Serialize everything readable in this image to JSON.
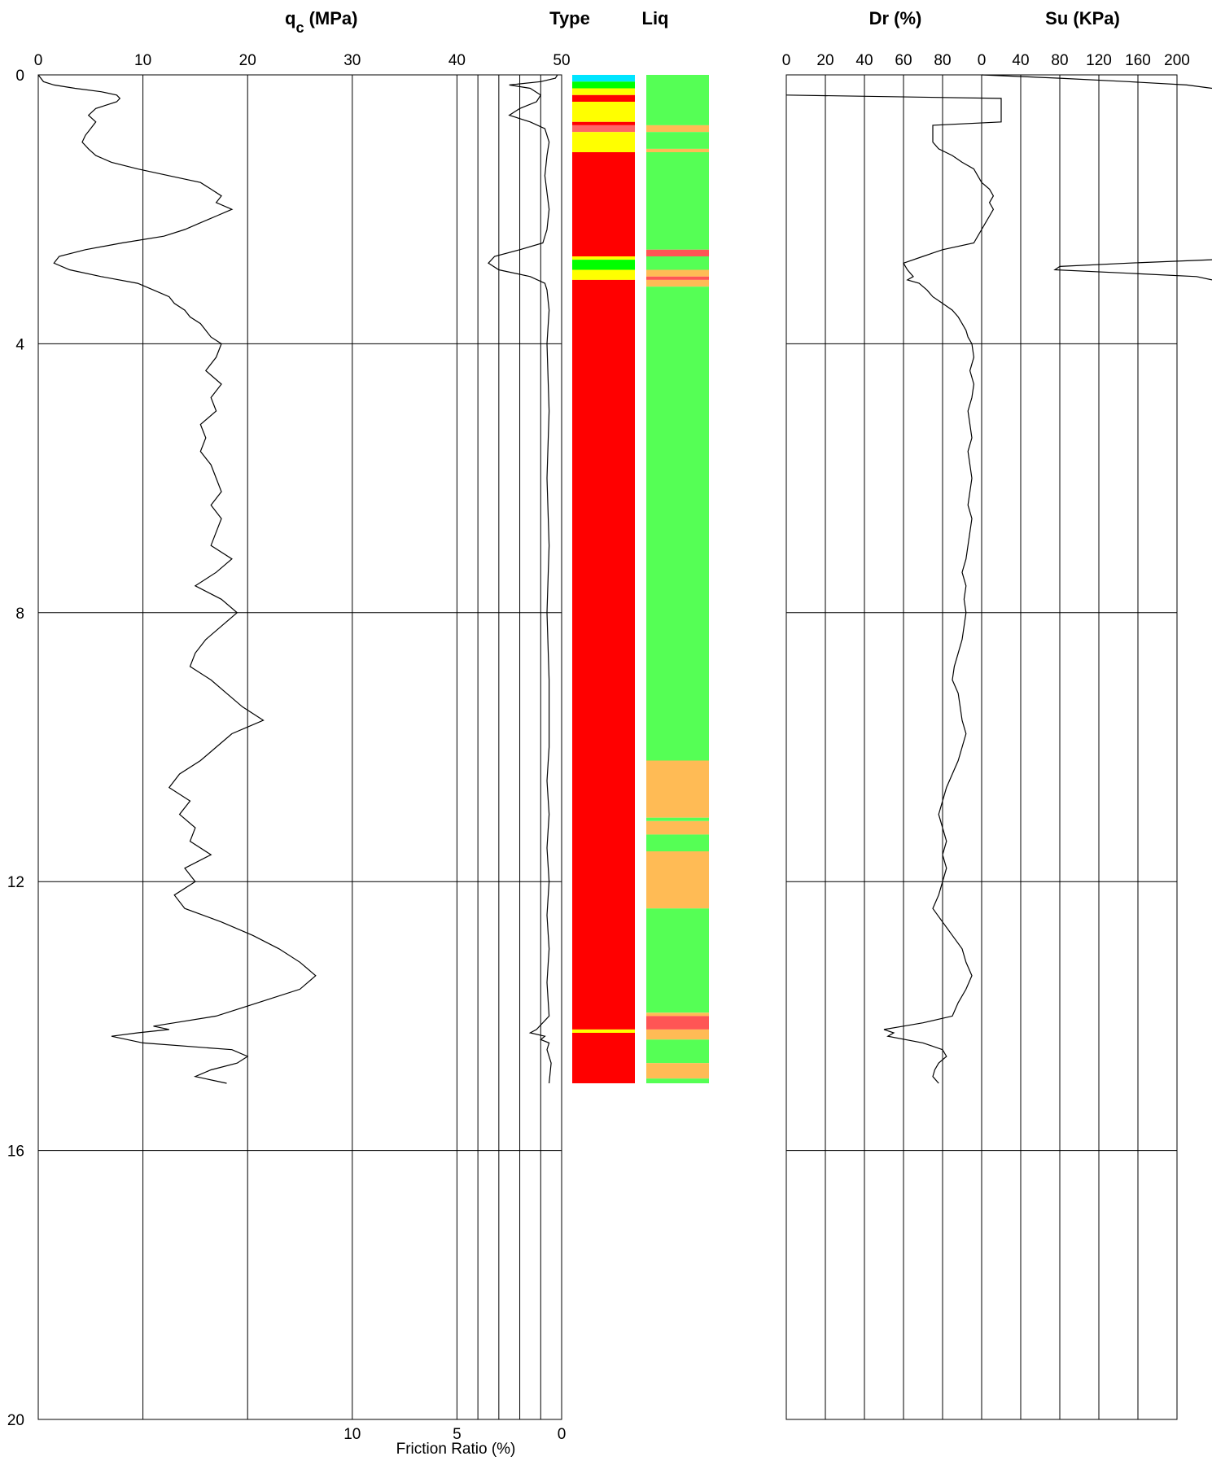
{
  "chart_data": [
    {
      "type": "line",
      "title": "qc (MPa)",
      "title_main": "q",
      "title_sub": "c",
      "title_rest": " (MPa)",
      "x_ticks": [
        "0",
        "10",
        "20",
        "30",
        "40",
        "50"
      ],
      "xlim": [
        0,
        50
      ],
      "y_ticks": [
        "0",
        "4",
        "8",
        "12",
        "16",
        "20"
      ],
      "ylim": [
        0,
        20
      ],
      "grid": true,
      "series": [
        {
          "values_depth": [
            0.0,
            0.1,
            0.15,
            0.2,
            0.25,
            0.3,
            0.35,
            0.4,
            0.5,
            0.6,
            0.7,
            0.8,
            0.9,
            1.0,
            1.1,
            1.2,
            1.3,
            1.4,
            1.5,
            1.6,
            1.7,
            1.8,
            1.9,
            2.0,
            2.1,
            2.2,
            2.3,
            2.4,
            2.5,
            2.6,
            2.7,
            2.8,
            2.9,
            3.0,
            3.1,
            3.2,
            3.3,
            3.4,
            3.5,
            3.6,
            3.7,
            3.8,
            3.9,
            4.0,
            4.2,
            4.4,
            4.6,
            4.8,
            5.0,
            5.2,
            5.4,
            5.6,
            5.8,
            6.0,
            6.2,
            6.4,
            6.6,
            6.8,
            7.0,
            7.2,
            7.4,
            7.6,
            7.8,
            8.0,
            8.2,
            8.4,
            8.6,
            8.8,
            9.0,
            9.2,
            9.4,
            9.6,
            9.8,
            10.0,
            10.2,
            10.4,
            10.6,
            10.8,
            11.0,
            11.2,
            11.4,
            11.6,
            11.8,
            12.0,
            12.2,
            12.4,
            12.6,
            12.8,
            13.0,
            13.2,
            13.4,
            13.6,
            13.8,
            14.0,
            14.1,
            14.15,
            14.2,
            14.25,
            14.3,
            14.4,
            14.5,
            14.6,
            14.7,
            14.8,
            14.9,
            15.0
          ],
          "values_qc": [
            0.0,
            0.5,
            1.5,
            3.5,
            6.0,
            7.5,
            7.8,
            7.5,
            5.5,
            4.8,
            5.5,
            5.0,
            4.5,
            4.2,
            4.8,
            5.5,
            7.0,
            9.5,
            12.5,
            15.5,
            16.5,
            17.5,
            17.0,
            18.5,
            17.0,
            15.5,
            14.0,
            12.0,
            8.0,
            4.5,
            2.0,
            1.5,
            3.0,
            6.0,
            9.5,
            11.0,
            12.5,
            13.0,
            14.0,
            14.5,
            15.5,
            16.0,
            16.5,
            17.5,
            17.0,
            16.0,
            17.5,
            16.5,
            17.0,
            15.5,
            16.0,
            15.5,
            16.5,
            17.0,
            17.5,
            16.5,
            17.5,
            17.0,
            16.5,
            18.5,
            17.0,
            15.0,
            17.5,
            19.0,
            17.5,
            16.0,
            15.0,
            14.5,
            16.5,
            18.0,
            19.5,
            21.5,
            18.5,
            17.0,
            15.5,
            13.5,
            12.5,
            14.5,
            13.5,
            15.0,
            14.5,
            16.5,
            14.0,
            15.0,
            13.0,
            14.0,
            17.5,
            20.5,
            23.0,
            25.0,
            26.5,
            25.0,
            21.0,
            17.0,
            13.0,
            11.0,
            12.5,
            9.5,
            7.0,
            10.0,
            18.5,
            20.0,
            19.0,
            16.5,
            15.0,
            18.0
          ]
        },
        {
          "name": "Friction Ratio (%)",
          "values_depth": [
            0.0,
            0.05,
            0.1,
            0.15,
            0.2,
            0.3,
            0.4,
            0.5,
            0.6,
            0.7,
            0.8,
            1.0,
            1.2,
            1.5,
            2.0,
            2.3,
            2.5,
            2.6,
            2.7,
            2.8,
            2.9,
            3.0,
            3.1,
            3.2,
            3.5,
            4.0,
            5.0,
            6.0,
            7.0,
            8.0,
            9.0,
            10.0,
            10.5,
            11.0,
            11.5,
            12.0,
            12.5,
            13.0,
            13.5,
            14.0,
            14.2,
            14.25,
            14.3,
            14.35,
            14.4,
            14.5,
            14.7,
            15.0
          ],
          "values_fr": [
            0.2,
            0.3,
            1.0,
            2.5,
            1.5,
            1.0,
            1.2,
            2.0,
            2.5,
            1.5,
            0.8,
            0.6,
            0.7,
            0.8,
            0.6,
            0.7,
            0.9,
            2.0,
            3.2,
            3.5,
            3.0,
            1.5,
            0.8,
            0.7,
            0.6,
            0.7,
            0.6,
            0.7,
            0.6,
            0.7,
            0.6,
            0.6,
            0.7,
            0.6,
            0.7,
            0.6,
            0.7,
            0.6,
            0.7,
            0.6,
            1.2,
            1.5,
            0.8,
            1.0,
            0.6,
            0.7,
            0.5,
            0.6
          ]
        }
      ],
      "fr_axis": {
        "label": "Friction Ratio (%)",
        "ticks": [
          "10",
          "5",
          "0"
        ],
        "xlim": [
          0,
          10
        ]
      }
    },
    {
      "type": "bar",
      "title": "Type",
      "ylim": [
        0,
        15
      ],
      "bands": [
        {
          "from": 0.0,
          "to": 0.1,
          "color": "#00e5ff"
        },
        {
          "from": 0.1,
          "to": 0.2,
          "color": "#00ff00"
        },
        {
          "from": 0.2,
          "to": 0.3,
          "color": "#ffff00"
        },
        {
          "from": 0.3,
          "to": 0.4,
          "color": "#ff0000"
        },
        {
          "from": 0.4,
          "to": 0.7,
          "color": "#ffff00"
        },
        {
          "from": 0.7,
          "to": 0.75,
          "color": "#ff0000"
        },
        {
          "from": 0.75,
          "to": 0.85,
          "color": "#ff6666"
        },
        {
          "from": 0.85,
          "to": 1.15,
          "color": "#ffff00"
        },
        {
          "from": 1.15,
          "to": 2.7,
          "color": "#ff0000"
        },
        {
          "from": 2.7,
          "to": 2.75,
          "color": "#ffff00"
        },
        {
          "from": 2.75,
          "to": 2.9,
          "color": "#00ff00"
        },
        {
          "from": 2.9,
          "to": 3.05,
          "color": "#ffff00"
        },
        {
          "from": 3.05,
          "to": 14.2,
          "color": "#ff0000"
        },
        {
          "from": 14.2,
          "to": 14.25,
          "color": "#ffff00"
        },
        {
          "from": 14.25,
          "to": 15.0,
          "color": "#ff0000"
        }
      ]
    },
    {
      "type": "bar",
      "title": "Liq",
      "ylim": [
        0,
        15
      ],
      "bands": [
        {
          "from": 0.0,
          "to": 0.75,
          "color": "#55ff55"
        },
        {
          "from": 0.75,
          "to": 0.85,
          "color": "#ffbb55"
        },
        {
          "from": 0.85,
          "to": 1.1,
          "color": "#55ff55"
        },
        {
          "from": 1.1,
          "to": 1.15,
          "color": "#ffbb55"
        },
        {
          "from": 1.15,
          "to": 2.6,
          "color": "#55ff55"
        },
        {
          "from": 2.6,
          "to": 2.7,
          "color": "#ff5555"
        },
        {
          "from": 2.7,
          "to": 2.9,
          "color": "#55ff55"
        },
        {
          "from": 2.9,
          "to": 3.0,
          "color": "#ffbb55"
        },
        {
          "from": 3.0,
          "to": 3.05,
          "color": "#ff5555"
        },
        {
          "from": 3.05,
          "to": 3.15,
          "color": "#ffbb55"
        },
        {
          "from": 3.15,
          "to": 3.25,
          "color": "#55ff55"
        },
        {
          "from": 3.25,
          "to": 10.2,
          "color": "#55ff55"
        },
        {
          "from": 10.2,
          "to": 11.05,
          "color": "#ffbb55"
        },
        {
          "from": 11.05,
          "to": 11.1,
          "color": "#55ff55"
        },
        {
          "from": 11.1,
          "to": 11.3,
          "color": "#ffbb55"
        },
        {
          "from": 11.3,
          "to": 11.55,
          "color": "#55ff55"
        },
        {
          "from": 11.55,
          "to": 12.4,
          "color": "#ffbb55"
        },
        {
          "from": 12.4,
          "to": 13.95,
          "color": "#55ff55"
        },
        {
          "from": 13.95,
          "to": 14.0,
          "color": "#ffbb55"
        },
        {
          "from": 14.0,
          "to": 14.2,
          "color": "#ff5555"
        },
        {
          "from": 14.2,
          "to": 14.35,
          "color": "#ffbb55"
        },
        {
          "from": 14.35,
          "to": 14.7,
          "color": "#55ff55"
        },
        {
          "from": 14.7,
          "to": 14.93,
          "color": "#ffbb55"
        },
        {
          "from": 14.93,
          "to": 15.0,
          "color": "#55ff55"
        }
      ]
    },
    {
      "type": "line",
      "title": "Dr (%)",
      "x_ticks": [
        "0",
        "20",
        "40",
        "60",
        "80"
      ],
      "xlim": [
        0,
        100
      ],
      "ylim": [
        0,
        20
      ],
      "grid": true,
      "series": [
        {
          "values_depth": [
            0.3,
            0.35,
            0.7,
            0.75,
            0.85,
            1.0,
            1.1,
            1.2,
            1.3,
            1.4,
            1.5,
            1.6,
            1.7,
            1.8,
            1.9,
            2.0,
            2.1,
            2.2,
            2.3,
            2.4,
            2.5,
            2.6,
            2.7,
            2.8,
            2.9,
            3.0,
            3.05,
            3.1,
            3.2,
            3.3,
            3.4,
            3.5,
            3.6,
            3.7,
            3.8,
            3.9,
            4.0,
            4.2,
            4.4,
            4.6,
            4.8,
            5.0,
            5.2,
            5.4,
            5.6,
            5.8,
            6.0,
            6.2,
            6.4,
            6.6,
            6.8,
            7.0,
            7.2,
            7.4,
            7.6,
            7.8,
            8.0,
            8.2,
            8.4,
            8.6,
            8.8,
            9.0,
            9.2,
            9.4,
            9.6,
            9.8,
            10.0,
            10.2,
            10.4,
            10.6,
            10.8,
            11.0,
            11.2,
            11.4,
            11.6,
            11.8,
            12.0,
            12.2,
            12.4,
            12.6,
            12.8,
            13.0,
            13.2,
            13.4,
            13.6,
            13.8,
            14.0,
            14.1,
            14.15,
            14.2,
            14.25,
            14.3,
            14.4,
            14.5,
            14.6,
            14.7,
            14.8,
            14.9,
            15.0
          ],
          "values_dr": [
            0,
            110,
            110,
            75,
            75,
            75,
            78,
            85,
            90,
            96,
            98,
            100,
            104,
            106,
            104,
            106,
            104,
            102,
            100,
            98,
            96,
            80,
            70,
            60,
            62,
            65,
            62,
            68,
            72,
            75,
            80,
            85,
            88,
            90,
            92,
            93,
            95,
            96,
            94,
            96,
            95,
            93,
            94,
            95,
            93,
            94,
            95,
            94,
            93,
            95,
            94,
            93,
            92,
            90,
            92,
            91,
            92,
            91,
            90,
            88,
            86,
            85,
            88,
            89,
            90,
            92,
            90,
            88,
            85,
            82,
            80,
            78,
            80,
            82,
            80,
            82,
            80,
            78,
            75,
            80,
            85,
            90,
            92,
            95,
            92,
            88,
            85,
            70,
            60,
            50,
            55,
            52,
            70,
            80,
            82,
            78,
            76,
            75,
            78
          ]
        }
      ]
    },
    {
      "type": "line",
      "title": "Su (KPa)",
      "x_ticks": [
        "0",
        "40",
        "80",
        "120",
        "160",
        "200"
      ],
      "xlim": [
        0,
        200
      ],
      "ylim": [
        0,
        20
      ],
      "grid": true,
      "series": [
        {
          "values_depth": [
            0.0,
            0.05,
            0.1,
            0.15,
            0.2,
            2.75,
            2.8,
            2.85,
            2.9,
            2.95,
            3.0,
            3.05
          ],
          "values_su": [
            0,
            80,
            150,
            210,
            240,
            240,
            150,
            80,
            75,
            150,
            220,
            250
          ]
        }
      ]
    }
  ]
}
